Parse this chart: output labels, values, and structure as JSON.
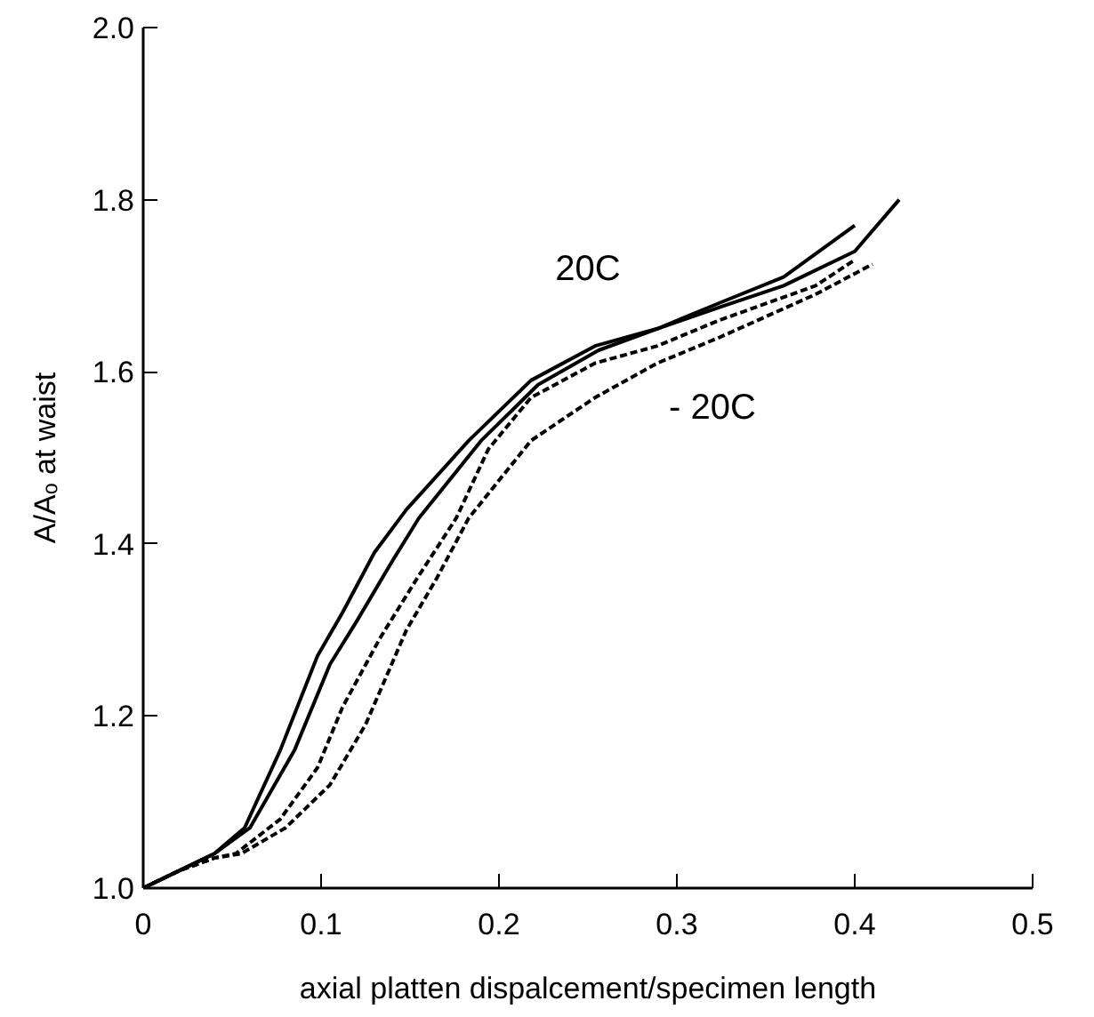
{
  "chart_data": {
    "type": "line",
    "xlabel": "axial platten dispalcement/specimen length",
    "ylabel": "A/Aₒ at waist",
    "xlim": [
      0,
      0.5
    ],
    "ylim": [
      1.0,
      2.0
    ],
    "xticks": [
      0,
      0.1,
      0.2,
      0.3,
      0.4,
      0.5
    ],
    "yticks": [
      {
        "value": 1.0,
        "label": "1.0"
      },
      1.2,
      1.4,
      1.6,
      1.8,
      {
        "value": 2.0,
        "label": "2.0"
      }
    ],
    "grid": false,
    "series": [
      {
        "color": "#000000",
        "line_style": "solid",
        "x": [
          0,
          0.02,
          0.04,
          0.057,
          0.077,
          0.098,
          0.112,
          0.13,
          0.148,
          0.183,
          0.218,
          0.254,
          0.289,
          0.324,
          0.36,
          0.4
        ],
        "values": [
          1.0,
          1.02,
          1.04,
          1.07,
          1.16,
          1.27,
          1.32,
          1.39,
          1.44,
          1.52,
          1.59,
          1.63,
          1.65,
          1.68,
          1.71,
          1.77
        ]
      },
      {
        "color": "#000000",
        "line_style": "solid",
        "x": [
          0,
          0.02,
          0.04,
          0.06,
          0.085,
          0.105,
          0.12,
          0.14,
          0.155,
          0.19,
          0.222,
          0.256,
          0.289,
          0.324,
          0.36,
          0.4,
          0.425
        ],
        "values": [
          1.0,
          1.02,
          1.04,
          1.07,
          1.16,
          1.26,
          1.31,
          1.38,
          1.43,
          1.52,
          1.585,
          1.625,
          1.65,
          1.675,
          1.7,
          1.74,
          1.8
        ]
      },
      {
        "color": "#000000",
        "line_style": "dashed",
        "x": [
          0,
          0.02,
          0.04,
          0.052,
          0.077,
          0.098,
          0.112,
          0.133,
          0.154,
          0.176,
          0.194,
          0.218,
          0.254,
          0.289,
          0.324,
          0.378,
          0.4
        ],
        "values": [
          1.0,
          1.02,
          1.035,
          1.04,
          1.08,
          1.14,
          1.21,
          1.29,
          1.36,
          1.43,
          1.51,
          1.57,
          1.61,
          1.63,
          1.66,
          1.7,
          1.73
        ]
      },
      {
        "color": "#000000",
        "line_style": "dashed",
        "x": [
          0,
          0.02,
          0.04,
          0.055,
          0.08,
          0.105,
          0.125,
          0.148,
          0.165,
          0.183,
          0.218,
          0.254,
          0.289,
          0.324,
          0.378,
          0.41
        ],
        "values": [
          1.0,
          1.02,
          1.035,
          1.04,
          1.07,
          1.12,
          1.19,
          1.3,
          1.36,
          1.43,
          1.52,
          1.57,
          1.61,
          1.64,
          1.69,
          1.725
        ]
      }
    ],
    "annotations": [
      "20C",
      "- 20C"
    ]
  }
}
